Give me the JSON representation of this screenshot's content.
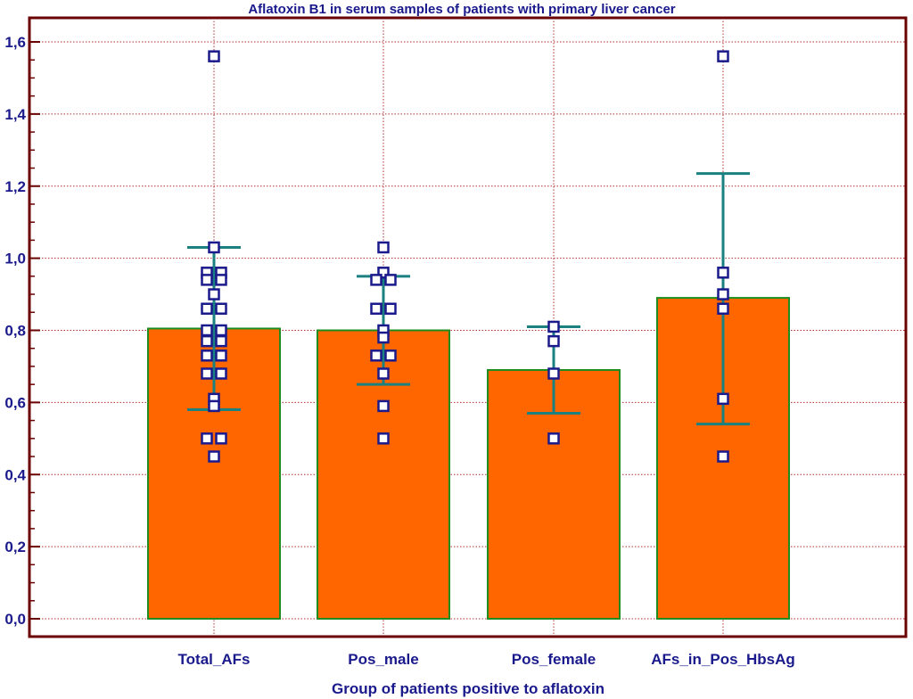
{
  "chart_data": {
    "type": "bar",
    "title": "Aflatoxin B1  in serum samples of patients with primary liver cancer",
    "xlabel": "Group of patients positive to aflatoxin",
    "ylabel": "",
    "ylim": [
      0,
      1.65
    ],
    "yticks": [
      "0,0",
      "0,2",
      "0,4",
      "0,6",
      "0,8",
      "1,0",
      "1,2",
      "1,4",
      "1,6"
    ],
    "ytick_values": [
      0,
      0.2,
      0.4,
      0.6,
      0.8,
      1.0,
      1.2,
      1.4,
      1.6
    ],
    "grid": true,
    "categories": [
      "Total_AFs",
      "Pos_male",
      "Pos_female",
      "AFs_in_Pos_HbsAg"
    ],
    "values": [
      0.805,
      0.8,
      0.69,
      0.89
    ],
    "error_bars": [
      {
        "low": 0.58,
        "high": 1.03
      },
      {
        "low": 0.65,
        "high": 0.95
      },
      {
        "low": 0.57,
        "high": 0.81
      },
      {
        "low": 0.54,
        "high": 1.235
      }
    ],
    "points": [
      [
        1.56,
        1.03,
        0.96,
        0.96,
        0.94,
        0.94,
        0.9,
        0.86,
        0.86,
        0.8,
        0.8,
        0.77,
        0.77,
        0.73,
        0.73,
        0.68,
        0.68,
        0.61,
        0.59,
        0.5,
        0.5,
        0.45
      ],
      [
        1.03,
        0.96,
        0.94,
        0.94,
        0.86,
        0.86,
        0.8,
        0.78,
        0.73,
        0.73,
        0.68,
        0.59,
        0.5
      ],
      [
        0.81,
        0.77,
        0.68,
        0.5
      ],
      [
        1.56,
        0.96,
        0.9,
        0.86,
        0.61,
        0.45
      ]
    ],
    "colors": {
      "bar_fill": "#ff6600",
      "bar_edge": "#1e8c1e",
      "error_bar": "#1a8080",
      "marker": "#1a1a8c",
      "grid": "#b03030",
      "frame": "#6b0000",
      "text": "#1a1a8c"
    }
  }
}
